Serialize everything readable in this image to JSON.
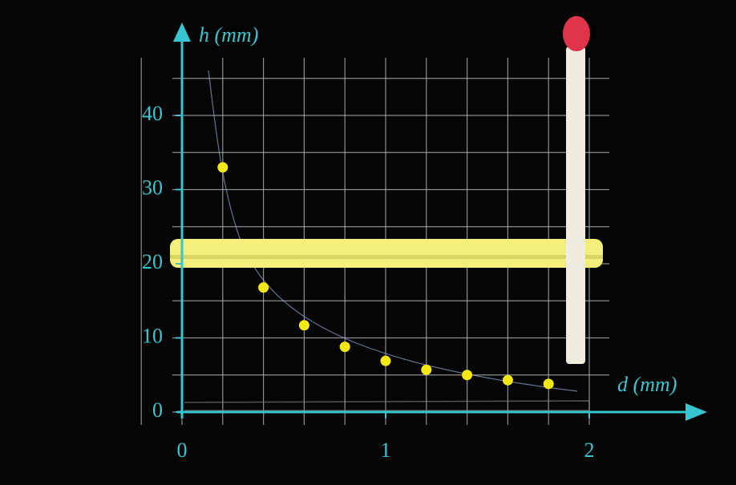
{
  "chart_data": {
    "type": "scatter",
    "x_label": "d (mm)",
    "y_label": "h (mm)",
    "x": [
      0.2,
      0.4,
      0.6,
      0.8,
      1.0,
      1.2,
      1.4,
      1.6,
      1.8
    ],
    "series": [
      {
        "color": "#f4e814",
        "values": [
          33.0,
          16.8,
          11.7,
          8.8,
          6.9,
          5.7,
          5.0,
          4.3,
          3.8
        ]
      }
    ],
    "xlim": [
      0,
      2
    ],
    "ylim": [
      0,
      50
    ],
    "xticks": [
      0,
      1,
      2
    ],
    "yticks": [
      0,
      10,
      20,
      30,
      40
    ],
    "axis_color": "#37c6cf"
  }
}
